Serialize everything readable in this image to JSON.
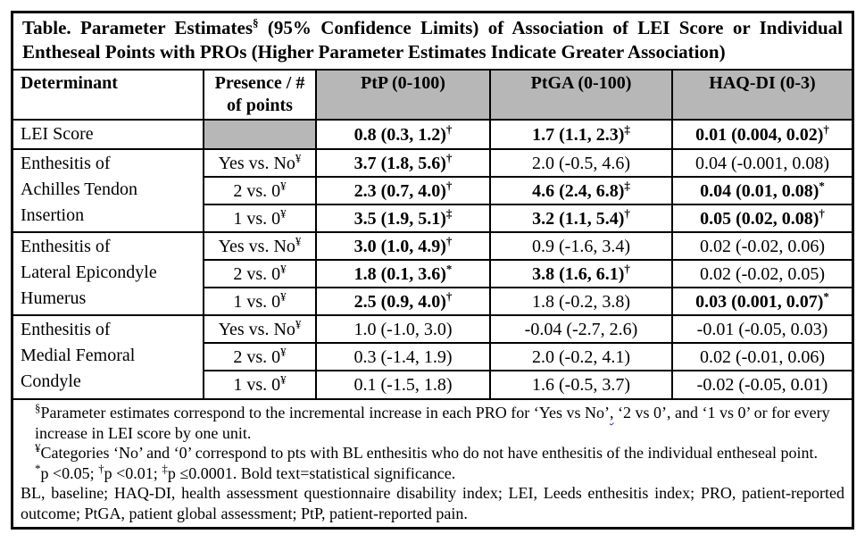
{
  "colors": {
    "header_shade": "#b7b7b7",
    "border_color": "#000000",
    "squiggle_blue": "#2a2ad4"
  },
  "title": {
    "prefix": "Table. Parameter Estimates",
    "sup": "§",
    "suffix": " (95% Confidence Limits) of Association of LEI Score or Individual Entheseal Points with PROs (Higher Parameter Estimates Indicate Greater Association)"
  },
  "table": {
    "headers": [
      {
        "label": "Determinant",
        "shaded": false
      },
      {
        "label": "Presence /  #\nof points",
        "shaded": false
      },
      {
        "label": "PtP (0-100)",
        "shaded": true
      },
      {
        "label": "PtGA (0-100)",
        "shaded": true
      },
      {
        "label": "HAQ-DI (0-3)",
        "shaded": true
      }
    ],
    "groups": [
      {
        "determinant": "LEI Score",
        "rows": [
          {
            "presence": {
              "text": "",
              "sup": "",
              "shaded": true
            },
            "values": [
              {
                "text": "0.8 (0.3, 1.2)",
                "sup": "†",
                "bold": true
              },
              {
                "text": "1.7 (1.1, 2.3)",
                "sup": "‡",
                "bold": true
              },
              {
                "text": "0.01 (0.004, 0.02)",
                "sup": "†",
                "bold": true
              }
            ]
          }
        ]
      },
      {
        "determinant": "Enthesitis of\nAchilles Tendon\nInsertion",
        "rows": [
          {
            "presence": {
              "text": "Yes vs. No",
              "sup": "¥",
              "shaded": false
            },
            "values": [
              {
                "text": "3.7 (1.8, 5.6)",
                "sup": "†",
                "bold": true
              },
              {
                "text": "2.0 (-0.5, 4.6)",
                "sup": "",
                "bold": false
              },
              {
                "text": "0.04 (-0.001, 0.08)",
                "sup": "",
                "bold": false
              }
            ]
          },
          {
            "presence": {
              "text": "2 vs. 0",
              "sup": "¥",
              "shaded": false
            },
            "values": [
              {
                "text": "2.3 (0.7, 4.0)",
                "sup": "†",
                "bold": true
              },
              {
                "text": "4.6 (2.4, 6.8)",
                "sup": "‡",
                "bold": true
              },
              {
                "text": "0.04 (0.01, 0.08)",
                "sup": "*",
                "bold": true
              }
            ]
          },
          {
            "presence": {
              "text": "1 vs. 0",
              "sup": "¥",
              "shaded": false
            },
            "values": [
              {
                "text": "3.5 (1.9, 5.1)",
                "sup": "‡",
                "bold": true
              },
              {
                "text": "3.2 (1.1, 5.4)",
                "sup": "†",
                "bold": true
              },
              {
                "text": "0.05 (0.02, 0.08)",
                "sup": "†",
                "bold": true
              }
            ]
          }
        ]
      },
      {
        "determinant": "Enthesitis of\nLateral Epicondyle\nHumerus",
        "rows": [
          {
            "presence": {
              "text": "Yes vs. No",
              "sup": "¥",
              "shaded": false
            },
            "values": [
              {
                "text": "3.0 (1.0, 4.9)",
                "sup": "†",
                "bold": true
              },
              {
                "text": "0.9 (-1.6, 3.4)",
                "sup": "",
                "bold": false
              },
              {
                "text": "0.02 (-0.02, 0.06)",
                "sup": "",
                "bold": false
              }
            ]
          },
          {
            "presence": {
              "text": "2 vs. 0",
              "sup": "¥",
              "shaded": false
            },
            "values": [
              {
                "text": "1.8 (0.1, 3.6)",
                "sup": "*",
                "bold": true
              },
              {
                "text": "3.8 (1.6, 6.1)",
                "sup": "†",
                "bold": true
              },
              {
                "text": "0.02 (-0.02, 0.05)",
                "sup": "",
                "bold": false
              }
            ]
          },
          {
            "presence": {
              "text": "1 vs. 0",
              "sup": "¥",
              "shaded": false
            },
            "values": [
              {
                "text": "2.5 (0.9, 4.0)",
                "sup": "†",
                "bold": true
              },
              {
                "text": "1.8 (-0.2, 3.8)",
                "sup": "",
                "bold": false
              },
              {
                "text": "0.03 (0.001, 0.07)",
                "sup": "*",
                "bold": true
              }
            ]
          }
        ]
      },
      {
        "determinant": "Enthesitis of\nMedial Femoral\nCondyle",
        "rows": [
          {
            "presence": {
              "text": "Yes vs. No",
              "sup": "¥",
              "shaded": false
            },
            "values": [
              {
                "text": "1.0 (-1.0, 3.0)",
                "sup": "",
                "bold": false
              },
              {
                "text": "-0.04 (-2.7, 2.6)",
                "sup": "",
                "bold": false
              },
              {
                "text": "-0.01 (-0.05, 0.03)",
                "sup": "",
                "bold": false
              }
            ]
          },
          {
            "presence": {
              "text": "2 vs. 0",
              "sup": "¥",
              "shaded": false
            },
            "values": [
              {
                "text": "0.3 (-1.4, 1.9)",
                "sup": "",
                "bold": false
              },
              {
                "text": "2.0 (-0.2, 4.1)",
                "sup": "",
                "bold": false
              },
              {
                "text": "0.02 (-0.01, 0.06)",
                "sup": "",
                "bold": false
              }
            ]
          },
          {
            "presence": {
              "text": "1 vs. 0",
              "sup": "¥",
              "shaded": false
            },
            "values": [
              {
                "text": "0.1 (-1.5, 1.8)",
                "sup": "",
                "bold": false
              },
              {
                "text": "1.6 (-0.5, 3.7)",
                "sup": "",
                "bold": false
              },
              {
                "text": "-0.02 (-0.05, 0.01)",
                "sup": "",
                "bold": false
              }
            ]
          }
        ]
      }
    ]
  },
  "footnotes": {
    "fn1": {
      "sup": "§",
      "text_a": "Parameter estimates correspond to the incremental increase in each PRO for ‘Yes vs No’",
      "squiggle": ",",
      "text_b": " ‘2 vs 0’, and ‘1 vs 0’ or for every increase in LEI score by one unit."
    },
    "fn2": {
      "sup": "¥",
      "text": "Categories ‘No’ and ‘0’ correspond to pts with BL enthesitis who do not have enthesitis of the individual entheseal point."
    },
    "fn3": {
      "parts": [
        {
          "sup": "*"
        },
        {
          "text": "p <0.05; "
        },
        {
          "sup": "†"
        },
        {
          "text": "p <0.01; "
        },
        {
          "sup": "‡"
        },
        {
          "text": "p ≤0.0001. Bold text=statistical significance."
        }
      ]
    },
    "fn4": {
      "text": "BL, baseline; HAQ-DI, health assessment questionnaire disability index; LEI, Leeds enthesitis index; PRO, patient-reported outcome; PtGA, patient global assessment; PtP, patient-reported pain."
    }
  }
}
